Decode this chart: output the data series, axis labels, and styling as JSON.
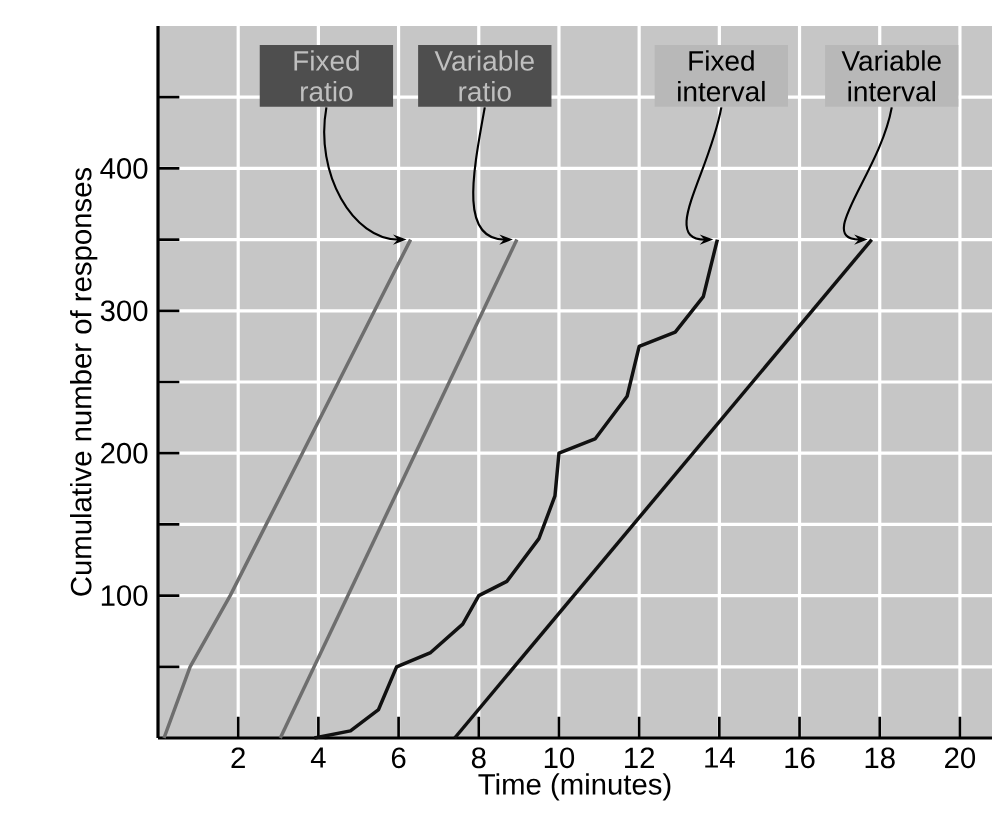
{
  "chart_data": {
    "type": "line",
    "xlabel": "Time (minutes)",
    "ylabel": "Cumulative number of responses",
    "xlim": [
      0,
      20.8
    ],
    "ylim": [
      0,
      500
    ],
    "xticks": [
      2,
      4,
      6,
      8,
      10,
      12,
      14,
      16,
      18,
      20
    ],
    "yticks": [
      {
        "value": 50,
        "label": null
      },
      100,
      {
        "value": 150,
        "label": null
      },
      200,
      {
        "value": 250,
        "label": null
      },
      300,
      {
        "value": 350,
        "label": null
      },
      400,
      {
        "value": 450,
        "label": null
      }
    ],
    "grid": true,
    "line_style": "solid",
    "marker": "none",
    "series": [
      {
        "color": "#6e6e6e",
        "x": [
          0.15,
          0.8,
          1.8,
          2.7,
          3.6,
          4.5,
          5.4,
          6.3
        ],
        "values": [
          0,
          50,
          100,
          150,
          200,
          250,
          300,
          350
        ]
      },
      {
        "color": "#6e6e6e",
        "x": [
          3.05,
          8.95
        ],
        "values": [
          0,
          350
        ]
      },
      {
        "color": "#111111",
        "x": [
          3.9,
          4.8,
          5.5,
          5.95,
          6.8,
          7.6,
          8.0,
          8.7,
          9.5,
          9.9,
          10.0,
          10.9,
          11.7,
          12.0,
          12.9,
          13.6,
          13.95
        ],
        "values": [
          0,
          5,
          20,
          50,
          60,
          80,
          100,
          110,
          140,
          170,
          200,
          210,
          240,
          275,
          285,
          310,
          350
        ]
      },
      {
        "color": "#111111",
        "x": [
          7.4,
          17.8
        ],
        "values": [
          0,
          350
        ]
      }
    ],
    "annotations": [
      {
        "text": "Fixed ratio",
        "x": 6.3,
        "y": 350
      },
      {
        "text": "Variable ratio",
        "x": 8.95,
        "y": 350
      },
      {
        "text": "Fixed interval",
        "x": 13.95,
        "y": 350
      },
      {
        "text": "Variable interval",
        "x": 17.8,
        "y": 350
      }
    ]
  }
}
